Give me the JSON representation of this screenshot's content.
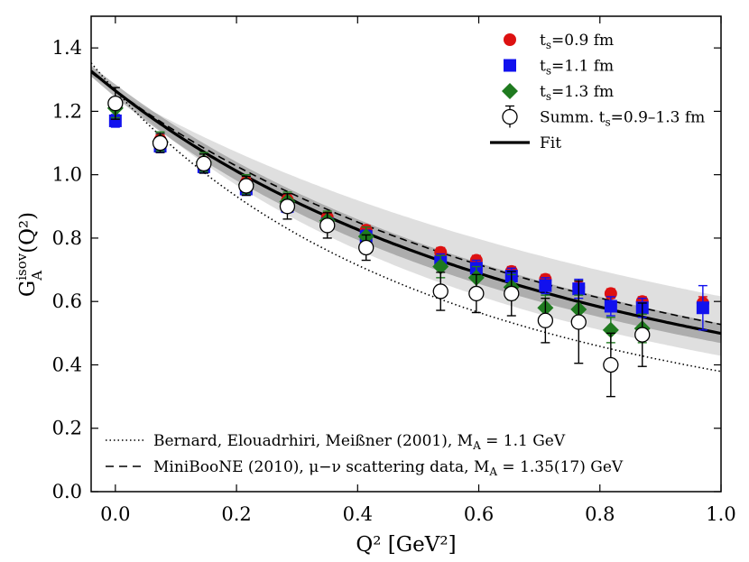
{
  "chart_data": {
    "type": "scatter",
    "xlabel": "Q² [GeV²]",
    "ylabel_main": "G",
    "ylabel_super": "isov",
    "ylabel_sub": "A",
    "ylabel_tail": "(Q²)",
    "xlim": [
      -0.04,
      1.0
    ],
    "ylim": [
      0.0,
      1.5
    ],
    "x_ticks": [
      0.0,
      0.2,
      0.4,
      0.6,
      0.8,
      1.0
    ],
    "x_tick_labels": [
      "0.0",
      "0.2",
      "0.4",
      "0.6",
      "0.8",
      "1.0"
    ],
    "y_ticks": [
      0.0,
      0.2,
      0.4,
      0.6,
      0.8,
      1.0,
      1.2,
      1.4
    ],
    "y_tick_labels": [
      "0.0",
      "0.2",
      "0.4",
      "0.6",
      "0.8",
      "1.0",
      "1.2",
      "1.4"
    ],
    "legend_position": "top-right",
    "legend": [
      {
        "name": "ts09",
        "label_pre": "t",
        "label_sub": "s",
        "label_post": "=0.9 fm",
        "marker": "circle",
        "color": "#dd1111"
      },
      {
        "name": "ts11",
        "label_pre": "t",
        "label_sub": "s",
        "label_post": "=1.1 fm",
        "marker": "square",
        "color": "#1111ee"
      },
      {
        "name": "ts13",
        "label_pre": "t",
        "label_sub": "s",
        "label_post": "=1.3 fm",
        "marker": "diamond",
        "color": "#1f7a1f"
      },
      {
        "name": "summ",
        "label_pre": "Summ. t",
        "label_sub": "s",
        "label_post": "=0.9–1.3 fm",
        "marker": "open-circle",
        "color": "#000000"
      },
      {
        "name": "fit",
        "label_pre": "Fit",
        "label_sub": "",
        "label_post": "",
        "marker": "line",
        "color": "#000000"
      }
    ],
    "bottom_legend": [
      {
        "name": "bernard",
        "style": "dotted",
        "label_pre": "Bernard, Elouadrhiri, Meißner (2001), M",
        "label_sub": "A",
        "label_post": " =  1.1 GeV"
      },
      {
        "name": "miniboone",
        "style": "dashed",
        "label_pre": "MiniBooNE (2010), μ−ν scattering data, M",
        "label_sub": "A",
        "label_post": " =  1.35(17) GeV"
      }
    ],
    "series": [
      {
        "name": "ts=0.9 fm",
        "color": "#dd1111",
        "marker": "circle",
        "points": [
          {
            "x": 0.0,
            "y": 1.22,
            "err": 0.02
          },
          {
            "x": 0.074,
            "y": 1.11,
            "err": 0.015
          },
          {
            "x": 0.146,
            "y": 1.04,
            "err": 0.015
          },
          {
            "x": 0.216,
            "y": 0.975,
            "err": 0.015
          },
          {
            "x": 0.284,
            "y": 0.92,
            "err": 0.015
          },
          {
            "x": 0.35,
            "y": 0.865,
            "err": 0.015
          },
          {
            "x": 0.414,
            "y": 0.825,
            "err": 0.015
          },
          {
            "x": 0.537,
            "y": 0.755,
            "err": 0.015
          },
          {
            "x": 0.596,
            "y": 0.73,
            "err": 0.015
          },
          {
            "x": 0.654,
            "y": 0.695,
            "err": 0.015
          },
          {
            "x": 0.71,
            "y": 0.67,
            "err": 0.015
          },
          {
            "x": 0.765,
            "y": 0.645,
            "err": 0.015
          },
          {
            "x": 0.818,
            "y": 0.625,
            "err": 0.015
          },
          {
            "x": 0.87,
            "y": 0.6,
            "err": 0.015
          },
          {
            "x": 0.97,
            "y": 0.595,
            "err": 0.02
          }
        ]
      },
      {
        "name": "ts=1.1 fm",
        "color": "#1111ee",
        "marker": "square",
        "points": [
          {
            "x": 0.0,
            "y": 1.17,
            "err": 0.02
          },
          {
            "x": 0.074,
            "y": 1.09,
            "err": 0.02
          },
          {
            "x": 0.146,
            "y": 1.025,
            "err": 0.02
          },
          {
            "x": 0.216,
            "y": 0.955,
            "err": 0.02
          },
          {
            "x": 0.284,
            "y": 0.9,
            "err": 0.02
          },
          {
            "x": 0.35,
            "y": 0.845,
            "err": 0.02
          },
          {
            "x": 0.414,
            "y": 0.805,
            "err": 0.02
          },
          {
            "x": 0.537,
            "y": 0.725,
            "err": 0.025
          },
          {
            "x": 0.596,
            "y": 0.705,
            "err": 0.025
          },
          {
            "x": 0.654,
            "y": 0.68,
            "err": 0.025
          },
          {
            "x": 0.71,
            "y": 0.65,
            "err": 0.025
          },
          {
            "x": 0.765,
            "y": 0.64,
            "err": 0.03
          },
          {
            "x": 0.818,
            "y": 0.585,
            "err": 0.03
          },
          {
            "x": 0.87,
            "y": 0.58,
            "err": 0.03
          },
          {
            "x": 0.97,
            "y": 0.58,
            "err": 0.07
          }
        ]
      },
      {
        "name": "ts=1.3 fm",
        "color": "#1f7a1f",
        "marker": "diamond",
        "points": [
          {
            "x": 0.0,
            "y": 1.21,
            "err": 0.03
          },
          {
            "x": 0.074,
            "y": 1.105,
            "err": 0.03
          },
          {
            "x": 0.146,
            "y": 1.04,
            "err": 0.03
          },
          {
            "x": 0.216,
            "y": 0.97,
            "err": 0.03
          },
          {
            "x": 0.284,
            "y": 0.915,
            "err": 0.03
          },
          {
            "x": 0.35,
            "y": 0.855,
            "err": 0.03
          },
          {
            "x": 0.414,
            "y": 0.805,
            "err": 0.03
          },
          {
            "x": 0.537,
            "y": 0.71,
            "err": 0.035
          },
          {
            "x": 0.596,
            "y": 0.675,
            "err": 0.035
          },
          {
            "x": 0.654,
            "y": 0.645,
            "err": 0.04
          },
          {
            "x": 0.71,
            "y": 0.58,
            "err": 0.04
          },
          {
            "x": 0.765,
            "y": 0.575,
            "err": 0.045
          },
          {
            "x": 0.818,
            "y": 0.51,
            "err": 0.04
          },
          {
            "x": 0.87,
            "y": 0.515,
            "err": 0.045
          }
        ]
      },
      {
        "name": "Summ. ts=0.9-1.3 fm",
        "color": "#000000",
        "marker": "open-circle",
        "points": [
          {
            "x": 0.0,
            "y": 1.225,
            "err": 0.05
          },
          {
            "x": 0.074,
            "y": 1.1,
            "err": 0.03
          },
          {
            "x": 0.146,
            "y": 1.035,
            "err": 0.03
          },
          {
            "x": 0.216,
            "y": 0.965,
            "err": 0.03
          },
          {
            "x": 0.284,
            "y": 0.9,
            "err": 0.04
          },
          {
            "x": 0.35,
            "y": 0.84,
            "err": 0.04
          },
          {
            "x": 0.414,
            "y": 0.77,
            "err": 0.04
          },
          {
            "x": 0.537,
            "y": 0.632,
            "err": 0.06
          },
          {
            "x": 0.596,
            "y": 0.625,
            "err": 0.06
          },
          {
            "x": 0.654,
            "y": 0.625,
            "err": 0.07
          },
          {
            "x": 0.71,
            "y": 0.54,
            "err": 0.07
          },
          {
            "x": 0.765,
            "y": 0.535,
            "err": 0.13
          },
          {
            "x": 0.818,
            "y": 0.4,
            "err": 0.1
          },
          {
            "x": 0.87,
            "y": 0.495,
            "err": 0.1
          }
        ]
      }
    ],
    "curves": [
      {
        "name": "fit",
        "style": "solid",
        "color": "#000000",
        "form": "dipole",
        "G0": 1.265,
        "MA": 1.3
      },
      {
        "name": "bernard",
        "style": "dotted",
        "color": "#000000",
        "form": "dipole",
        "G0": 1.265,
        "MA": 1.1
      },
      {
        "name": "miniboone",
        "style": "dashed",
        "color": "#000000",
        "form": "dipole",
        "G0": 1.265,
        "MA": 1.35
      }
    ],
    "bands": [
      {
        "name": "miniboone-band",
        "color": "#d9d9d9",
        "opacity": 0.85,
        "form": "dipole",
        "G0": 1.265,
        "MA_low": 1.18,
        "MA_high": 1.52
      },
      {
        "name": "fit-band",
        "color": "#8c8c8c",
        "opacity": 0.6,
        "form": "dipole",
        "G0_low": 1.245,
        "G0_high": 1.285,
        "MA_low": 1.26,
        "MA_high": 1.34
      }
    ]
  }
}
